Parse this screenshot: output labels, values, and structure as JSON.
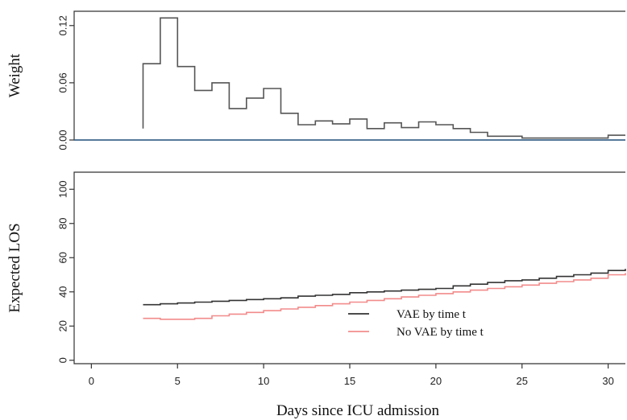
{
  "chart_data": [
    {
      "type": "line",
      "step": true,
      "ylabel": "Weight",
      "xlim": [
        -1,
        31
      ],
      "ylim": [
        0,
        0.135
      ],
      "yticks": [
        "0.00",
        "0.06",
        "0.12"
      ],
      "ytick_values": [
        0,
        0.06,
        0.12
      ],
      "series": [
        {
          "color": "#555555",
          "x": [
            3,
            4,
            5,
            6,
            7,
            8,
            9,
            10,
            11,
            12,
            13,
            14,
            15,
            16,
            17,
            18,
            19,
            20,
            21,
            22,
            23,
            25,
            28,
            30,
            31
          ],
          "values": [
            0.08,
            0.128,
            0.077,
            0.052,
            0.06,
            0.033,
            0.044,
            0.054,
            0.028,
            0.016,
            0.02,
            0.017,
            0.022,
            0.012,
            0.018,
            0.013,
            0.019,
            0.016,
            0.012,
            0.008,
            0.004,
            0.002,
            0.002,
            0.005,
            0.005
          ]
        },
        {
          "color": "#2f5e8a",
          "x": [
            -1,
            31
          ],
          "values": [
            0,
            0
          ]
        }
      ]
    },
    {
      "type": "line",
      "step": true,
      "ylabel": "Expected LOS",
      "xlabel": "Days since ICU admission",
      "xlim": [
        -1,
        31
      ],
      "ylim": [
        -2,
        110
      ],
      "xticks": [
        "0",
        "5",
        "10",
        "15",
        "20",
        "25",
        "30"
      ],
      "xtick_values": [
        0,
        5,
        10,
        15,
        20,
        25,
        30
      ],
      "yticks": [
        "0",
        "20",
        "40",
        "60",
        "80",
        "100"
      ],
      "ytick_values": [
        0,
        20,
        40,
        60,
        80,
        100
      ],
      "legend": "inside-bottom-right",
      "series": [
        {
          "name": "VAE by time t",
          "color": "#333333",
          "x": [
            3,
            4,
            5,
            6,
            7,
            8,
            9,
            10,
            11,
            12,
            13,
            14,
            15,
            16,
            17,
            18,
            19,
            20,
            21,
            22,
            23,
            24,
            25,
            26,
            27,
            28,
            29,
            30,
            31
          ],
          "values": [
            32.5,
            33,
            33.5,
            34,
            34.5,
            35,
            35.5,
            36,
            36.5,
            37.5,
            38,
            38.5,
            39.5,
            40,
            40.5,
            41,
            41.5,
            42,
            43.5,
            44.5,
            45.5,
            46.5,
            47,
            48,
            49,
            50,
            51,
            52.5,
            53.5
          ]
        },
        {
          "name": "No VAE by time t",
          "color": "#f28b8b",
          "x": [
            3,
            4,
            5,
            6,
            7,
            8,
            9,
            10,
            11,
            12,
            13,
            14,
            15,
            16,
            17,
            18,
            19,
            20,
            21,
            22,
            23,
            24,
            25,
            26,
            27,
            28,
            29,
            30,
            31
          ],
          "values": [
            24.5,
            24,
            24,
            24.5,
            26,
            27,
            28,
            29,
            30,
            31,
            32,
            33,
            34,
            35,
            36,
            37,
            38,
            39,
            40,
            41,
            42,
            43,
            44,
            45,
            46,
            47,
            48,
            50,
            51
          ]
        }
      ]
    }
  ]
}
